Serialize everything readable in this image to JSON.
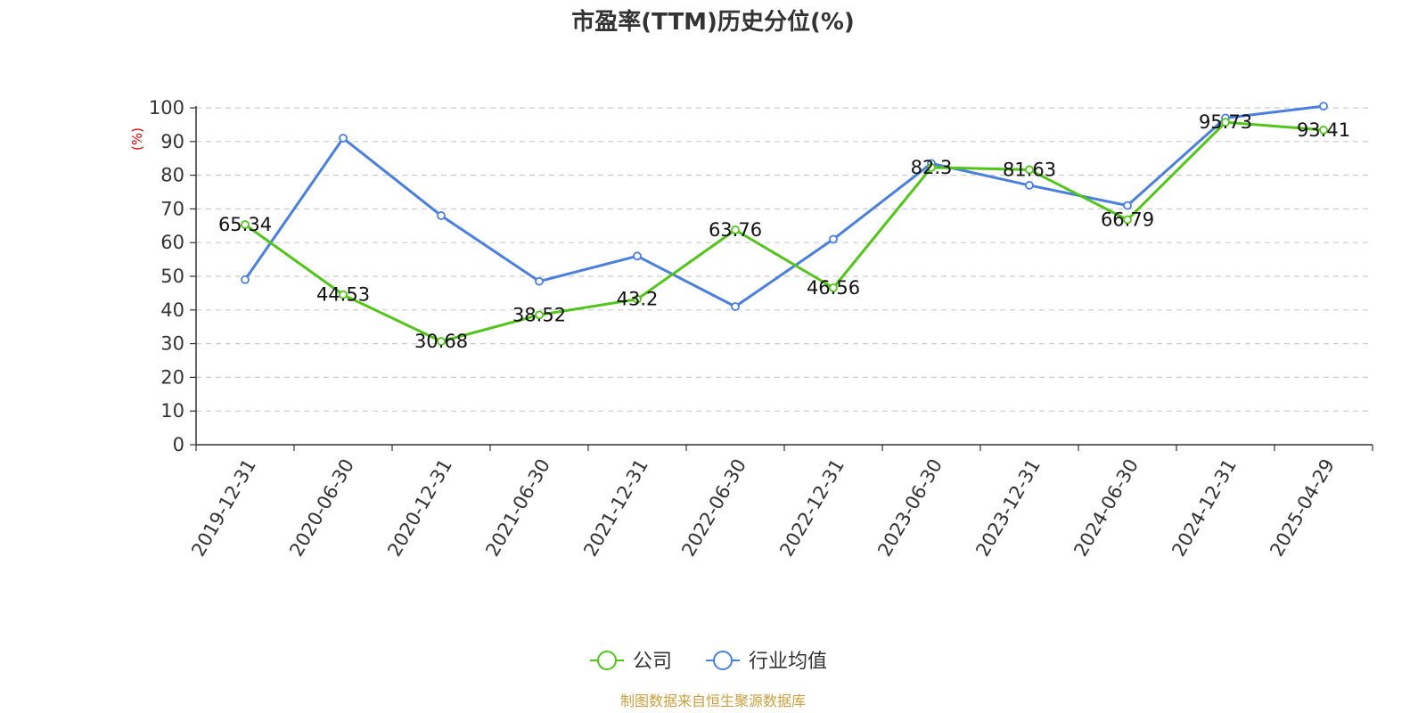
{
  "chart_data": {
    "type": "line",
    "title": "市盈率(TTM)历史分位(%)",
    "ylabel": "(%)",
    "xlabel": "",
    "ylim": [
      0,
      100
    ],
    "y_ticks": [
      0,
      10,
      20,
      30,
      40,
      50,
      60,
      70,
      80,
      90,
      100
    ],
    "grid": "horizontal dashed",
    "legend_position": "bottom-center",
    "categories": [
      "2019-12-31",
      "2020-06-30",
      "2020-12-31",
      "2021-06-30",
      "2021-12-31",
      "2022-06-30",
      "2022-12-31",
      "2023-06-30",
      "2023-12-31",
      "2024-06-30",
      "2024-12-31",
      "2025-04-29"
    ],
    "series": [
      {
        "name": "公司",
        "color": "#52c41a",
        "values": [
          65.34,
          44.53,
          30.68,
          38.52,
          43.2,
          63.76,
          46.56,
          82.3,
          81.63,
          66.79,
          95.73,
          93.41
        ],
        "labels": [
          "65.34",
          "44.53",
          "30.68",
          "38.52",
          "43.2",
          "63.76",
          "46.56",
          "82.3",
          "81.63",
          "66.79",
          "95.73",
          "93.41"
        ]
      },
      {
        "name": "行业均值",
        "color": "#4a7fdc",
        "values": [
          49,
          91,
          68,
          48.5,
          56,
          41,
          61,
          83.5,
          77,
          71,
          97,
          100.5
        ]
      }
    ],
    "source": "制图数据来自恒生聚源数据库"
  }
}
